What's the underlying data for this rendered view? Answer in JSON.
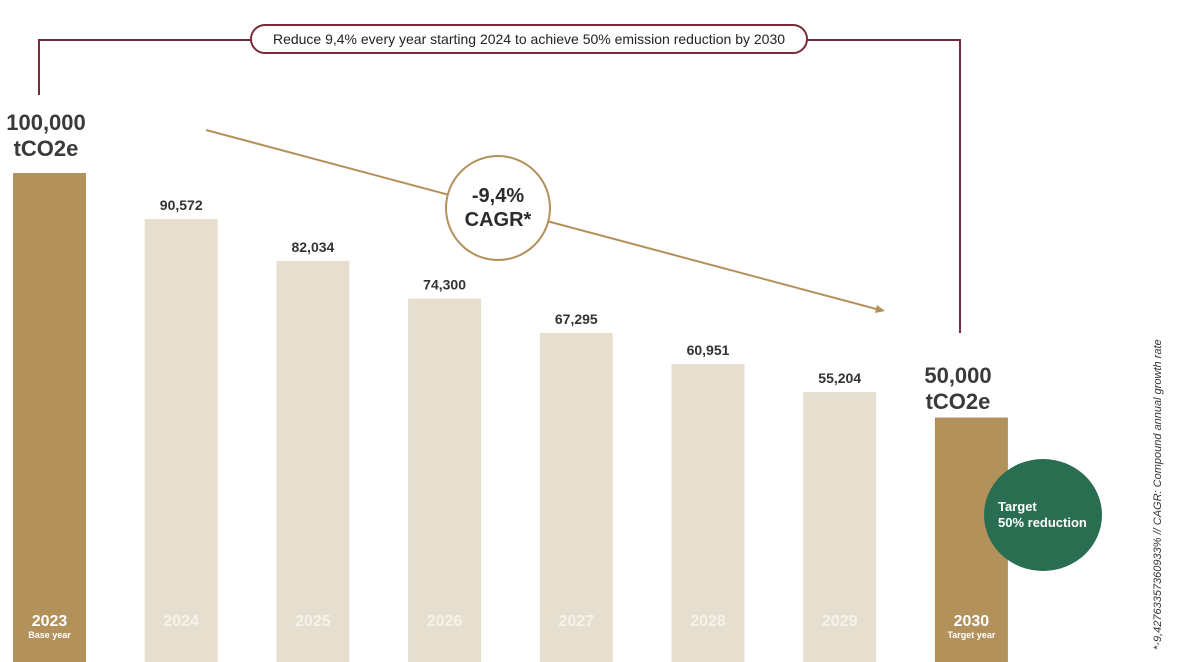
{
  "banner": "Reduce 9,4% every year starting 2024 to achieve 50% emission reduction by 2030",
  "cagr": {
    "value": "-9,4%",
    "label": "CAGR*"
  },
  "base_label": {
    "line1": "100,000",
    "line2": "tCO2e"
  },
  "target_label": {
    "line1": "50,000",
    "line2": "tCO2e"
  },
  "target_circle": {
    "line1": "Target",
    "line2": "50% reduction"
  },
  "footnote": "*-9,42763357360933% // CAGR: Compound annual growth rate",
  "colors": {
    "highlight": "#b3915a",
    "projection": "#e6dfcf",
    "bracket": "#7a2a3a",
    "target": "#2a6e52"
  },
  "chart_data": {
    "type": "bar",
    "categories": [
      "2023",
      "2024",
      "2025",
      "2026",
      "2027",
      "2028",
      "2029",
      "2030"
    ],
    "sublabels": [
      "Base year",
      "",
      "",
      "",
      "",
      "",
      "",
      "Target year"
    ],
    "values": [
      100000,
      90572,
      82034,
      74300,
      67295,
      60951,
      55204,
      50000
    ],
    "value_labels": [
      "",
      "90,572",
      "82,034",
      "74,300",
      "67,295",
      "60,951",
      "55,204",
      ""
    ],
    "highlight": [
      true,
      false,
      false,
      false,
      false,
      false,
      false,
      true
    ],
    "units": "tCO2e",
    "ylim": [
      0,
      100000
    ]
  }
}
